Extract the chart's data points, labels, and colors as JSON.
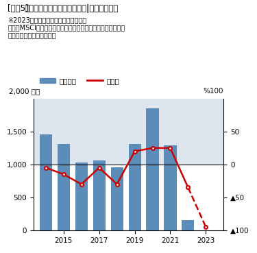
{
  "bar_years": [
    2014,
    2015,
    2016,
    2017,
    2018,
    2019,
    2020,
    2021,
    2022,
    2023
  ],
  "bar_heights": [
    1460,
    1310,
    1030,
    1060,
    960,
    1310,
    1850,
    1290,
    150,
    0
  ],
  "line_years": [
    2014,
    2015,
    2016,
    2017,
    2018,
    2019,
    2020,
    2021,
    2022,
    2023
  ],
  "line_values": [
    -5,
    -15,
    -30,
    -5,
    -30,
    20,
    25,
    25,
    -35,
    -95
  ],
  "bar_color": "#5B8DB8",
  "bar_color_2023": "#3A5F8A",
  "line_color": "#CC0000",
  "title_prefix": "[図表5]",
  "title_bold": "関東圏のアパート用地の取引|総額と前年比",
  "note1": "※2023年は上期累計とその前年同期比",
  "note2": "資料：MSCIリアルキャピタル・アナリティクスのデータから",
  "note3": "ニッセイ基礎研究所が作成",
  "legend_bar": "取引総額",
  "legend_line": "前年比",
  "ylabel_left": "2,000 億円",
  "ylabel_right": "%100",
  "ylim_left": [
    0,
    2000
  ],
  "ylim_right": [
    -100,
    100
  ],
  "yticks_left": [
    0,
    500,
    1000,
    1500
  ],
  "ytick_left_labels": [
    "0",
    "500",
    "1,000",
    "1,500"
  ],
  "yticks_right": [
    -100,
    -50,
    0,
    50
  ],
  "ytick_right_labels": [
    "♀100",
    "♀50",
    "0",
    "50"
  ],
  "xlim": [
    2013.3,
    2024.0
  ],
  "xticks": [
    2015,
    2017,
    2019,
    2021,
    2023
  ],
  "bg_upper": "#DDE6EF",
  "bg_lower": "#FFFFFF"
}
